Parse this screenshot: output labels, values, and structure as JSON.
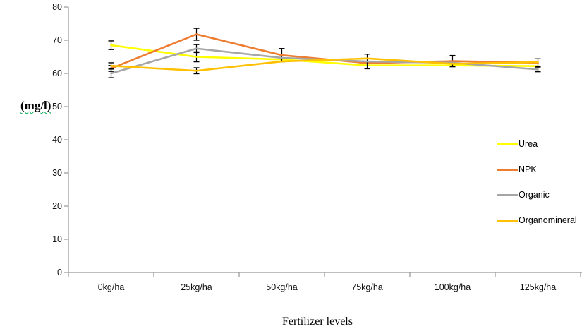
{
  "chart_data": {
    "type": "line",
    "title": "",
    "xlabel": "Fertilizer levels",
    "ylabel": "(mg/l)",
    "ylabel_underline": {
      "style": "wavy",
      "color": "#00A550"
    },
    "categories": [
      "0kg/ha",
      "25kg/ha",
      "50kg/ha",
      "75kg/ha",
      "100kg/ha",
      "125kg/ha"
    ],
    "ylim": [
      0,
      80
    ],
    "ytick_step": 10,
    "yticks": [
      0,
      10,
      20,
      30,
      40,
      50,
      60,
      70,
      80
    ],
    "grid": false,
    "legend_position": "middle-right",
    "error_bars": "visible, black, with caps",
    "series": [
      {
        "name": "Urea",
        "color": "#FFFF00",
        "values": [
          68.5,
          65.0,
          64.2,
          62.4,
          62.4,
          62.2
        ],
        "errors": [
          1.3,
          1.5,
          0,
          0,
          0,
          0
        ]
      },
      {
        "name": "NPK",
        "color": "#ED7D31",
        "values": [
          61.5,
          71.8,
          65.5,
          63.1,
          63.7,
          63.2
        ],
        "errors": [
          0.9,
          1.8,
          2.0,
          0,
          1.7,
          1.2
        ]
      },
      {
        "name": "Organic",
        "color": "#A6A6A6",
        "values": [
          60.0,
          67.5,
          64.7,
          63.6,
          63.2,
          61.2
        ],
        "errors": [
          1.3,
          1.2,
          0,
          2.2,
          0,
          0.7
        ]
      },
      {
        "name": "Organomineral",
        "color": "#FFC000",
        "values": [
          62.3,
          60.8,
          63.6,
          64.5,
          62.9,
          63.4
        ],
        "errors": [
          0.9,
          0.9,
          0,
          0,
          0,
          0
        ]
      }
    ],
    "axis_color": "#969696",
    "tick_label_color": "#111111",
    "error_bar_color": "#000000"
  }
}
